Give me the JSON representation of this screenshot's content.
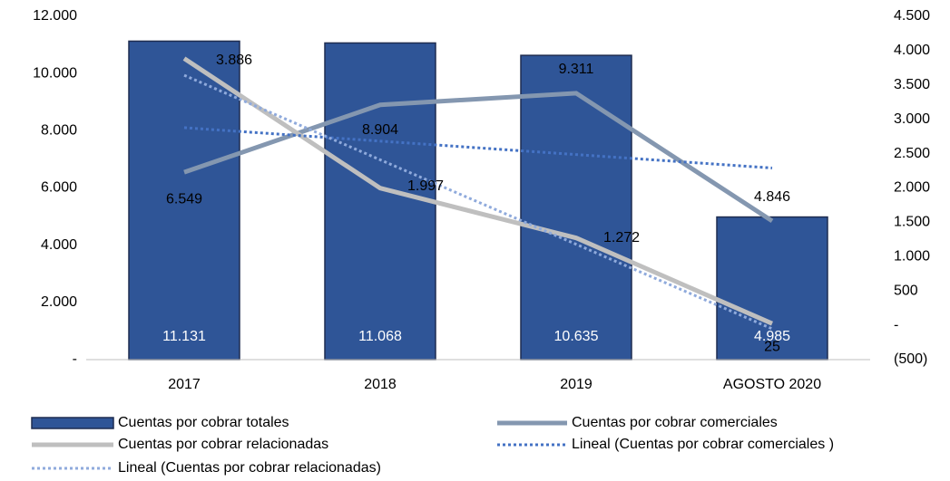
{
  "chart_data": {
    "type": "bar-line",
    "categories": [
      "2017",
      "2018",
      "2019",
      "AGOSTO 2020"
    ],
    "ylim": [
      0,
      12000
    ],
    "yticks": [
      {
        "value": 0,
        "label": "-"
      },
      {
        "value": 2000,
        "label": "2.000"
      },
      {
        "value": 4000,
        "label": "4.000"
      },
      {
        "value": 6000,
        "label": "6.000"
      },
      {
        "value": 8000,
        "label": "8.000"
      },
      {
        "value": 10000,
        "label": "10.000"
      },
      {
        "value": 12000,
        "label": "12.000"
      }
    ],
    "y2lim": [
      -500,
      4500
    ],
    "y2ticks": [
      {
        "value": -500,
        "label": "(500)"
      },
      {
        "value": 0,
        "label": "-"
      },
      500,
      {
        "value": 1000,
        "label": "1.000"
      },
      {
        "value": 1500,
        "label": "1.500"
      },
      {
        "value": 2000,
        "label": "2.000"
      },
      {
        "value": 2500,
        "label": "2.500"
      },
      {
        "value": 3000,
        "label": "3.000"
      },
      {
        "value": 3500,
        "label": "3.500"
      },
      {
        "value": 4000,
        "label": "4.000"
      },
      {
        "value": 4500,
        "label": "4.500"
      }
    ],
    "series": [
      {
        "name": "Cuentas por cobrar totales",
        "type": "bar",
        "color": "#2f5597",
        "values": [
          11131,
          11068,
          10635,
          4985
        ],
        "value_labels": [
          "11.131",
          "11.068",
          "10.635",
          "4.985"
        ]
      },
      {
        "name": "Cuentas por cobrar comerciales",
        "type": "line",
        "color": "#8497b0",
        "values": [
          6549,
          8904,
          9311,
          4846
        ],
        "value_labels": [
          "6.549",
          "8.904",
          "9.311",
          "4.846"
        ],
        "trendline": {
          "name": "Lineal (Cuentas por cobrar comerciales )",
          "color": "#4472c4"
        }
      },
      {
        "name": "Cuentas por cobrar relacionadas",
        "type": "line",
        "axis": "y2",
        "color": "#bfbfbf",
        "values": [
          3886,
          1997,
          1272,
          25
        ],
        "value_labels": [
          "3.886",
          "1.997",
          "1.272",
          "25"
        ],
        "trendline": {
          "name": "Lineal (Cuentas por cobrar relacionadas)",
          "color": "#8faadc"
        }
      }
    ]
  }
}
